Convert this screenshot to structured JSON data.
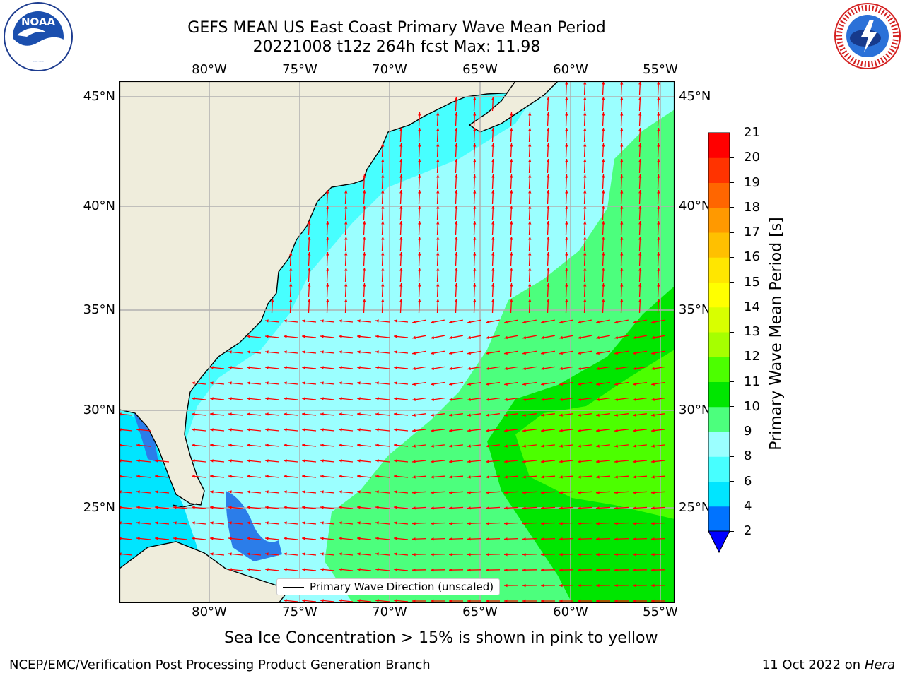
{
  "title_line1": "GEFS MEAN US East Coast Primary Wave Mean Period",
  "title_line2": "20221008 t12z 264h fcst   Max: 11.98",
  "lon_labels": [
    "80°W",
    "75°W",
    "70°W",
    "65°W",
    "60°W",
    "55°W"
  ],
  "lat_labels": [
    "45°N",
    "40°N",
    "35°N",
    "30°N",
    "25°N"
  ],
  "legend_label": "Primary Wave Direction (unscaled)",
  "colorbar": {
    "label": "Primary Wave Mean Period [s]",
    "ticks": [
      "2",
      "4",
      "6",
      "8",
      "9",
      "10",
      "11",
      "12",
      "13",
      "14",
      "15",
      "16",
      "17",
      "18",
      "19",
      "20",
      "21"
    ],
    "colors": [
      "#0073ff",
      "#00e5ff",
      "#47ffff",
      "#9bffff",
      "#4cff7d",
      "#00e600",
      "#4cff00",
      "#a6ff00",
      "#d8ff00",
      "#ffff00",
      "#ffe600",
      "#ffc000",
      "#ff9900",
      "#ff6600",
      "#ff3300",
      "#ff0000"
    ],
    "under_color": "#0000ff"
  },
  "subtitle": "Sea Ice Concentration > 15% is shown in pink to yellow",
  "footer_left": "NCEP/EMC/Verification Post Processing Product Generation Branch",
  "footer_date": "11 Oct 2022 on",
  "footer_machine": "Hera",
  "map_colors": {
    "land": "#efeddc",
    "arrow": "#ff0000",
    "grid": "#b0b0b0"
  },
  "logos": {
    "left": "noaa-logo",
    "right": "national-weather-service-logo",
    "noaa_text": "NOAA",
    "nws_text": "NATIONAL WEATHER SERVICE"
  }
}
